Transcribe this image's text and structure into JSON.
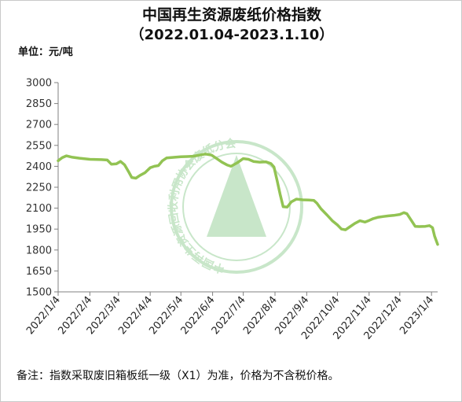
{
  "header": {
    "title": "中国再生资源废纸价格指数",
    "subtitle": "（2022.01.04-2023.1.10）",
    "unit": "单位：元/吨"
  },
  "footer": {
    "note": "备注：指数采取废旧箱板纸一级（X1）为准，价格为不含税价格。"
  },
  "watermark": {
    "text": "中国再生资源回收利用协会废纸分会",
    "color": "#4caf50"
  },
  "chart_data": {
    "type": "line",
    "title": "中国再生资源废纸价格指数",
    "subtitle": "（2022.01.04-2023.1.10）",
    "ylabel": "单位：元/吨",
    "ylim": [
      1500,
      3000
    ],
    "yticks": [
      1500,
      1650,
      1800,
      1950,
      2100,
      2250,
      2400,
      2550,
      2700,
      2850,
      3000
    ],
    "xlim": [
      "2022-01-04",
      "2023-01-10"
    ],
    "xticks": [
      {
        "date": "2022-01-04",
        "label": "2022/1/4"
      },
      {
        "date": "2022-02-04",
        "label": "2022/2/4"
      },
      {
        "date": "2022-03-04",
        "label": "2022/3/4"
      },
      {
        "date": "2022-04-04",
        "label": "2022/4/4"
      },
      {
        "date": "2022-05-04",
        "label": "2022/5/4"
      },
      {
        "date": "2022-06-04",
        "label": "2022/6/4"
      },
      {
        "date": "2022-07-04",
        "label": "2022/7/4"
      },
      {
        "date": "2022-08-04",
        "label": "2022/8/4"
      },
      {
        "date": "2022-09-04",
        "label": "2022/9/4"
      },
      {
        "date": "2022-10-04",
        "label": "2022/10/4"
      },
      {
        "date": "2022-11-04",
        "label": "2022/11/4"
      },
      {
        "date": "2022-12-04",
        "label": "2022/12/4"
      },
      {
        "date": "2023-01-04",
        "label": "2023/1/4"
      }
    ],
    "grid": false,
    "legend": "none",
    "line_color": "#92c353",
    "series": [
      {
        "points": [
          [
            "2022-01-04",
            2440
          ],
          [
            "2022-01-08",
            2462
          ],
          [
            "2022-01-12",
            2475
          ],
          [
            "2022-01-18",
            2465
          ],
          [
            "2022-01-25",
            2458
          ],
          [
            "2022-02-04",
            2450
          ],
          [
            "2022-02-15",
            2448
          ],
          [
            "2022-02-21",
            2445
          ],
          [
            "2022-02-25",
            2415
          ],
          [
            "2022-03-02",
            2418
          ],
          [
            "2022-03-06",
            2435
          ],
          [
            "2022-03-10",
            2410
          ],
          [
            "2022-03-14",
            2360
          ],
          [
            "2022-03-17",
            2320
          ],
          [
            "2022-03-21",
            2315
          ],
          [
            "2022-03-25",
            2335
          ],
          [
            "2022-03-30",
            2355
          ],
          [
            "2022-04-04",
            2390
          ],
          [
            "2022-04-08",
            2400
          ],
          [
            "2022-04-12",
            2405
          ],
          [
            "2022-04-16",
            2440
          ],
          [
            "2022-04-20",
            2460
          ],
          [
            "2022-04-28",
            2465
          ],
          [
            "2022-05-04",
            2468
          ],
          [
            "2022-05-10",
            2470
          ],
          [
            "2022-05-16",
            2472
          ],
          [
            "2022-05-22",
            2480
          ],
          [
            "2022-05-28",
            2488
          ],
          [
            "2022-06-03",
            2480
          ],
          [
            "2022-06-08",
            2455
          ],
          [
            "2022-06-13",
            2430
          ],
          [
            "2022-06-18",
            2410
          ],
          [
            "2022-06-22",
            2400
          ],
          [
            "2022-06-28",
            2425
          ],
          [
            "2022-07-04",
            2455
          ],
          [
            "2022-07-09",
            2450
          ],
          [
            "2022-07-14",
            2435
          ],
          [
            "2022-07-20",
            2430
          ],
          [
            "2022-07-26",
            2432
          ],
          [
            "2022-07-31",
            2420
          ],
          [
            "2022-08-03",
            2395
          ],
          [
            "2022-08-06",
            2300
          ],
          [
            "2022-08-09",
            2200
          ],
          [
            "2022-08-12",
            2110
          ],
          [
            "2022-08-16",
            2108
          ],
          [
            "2022-08-20",
            2145
          ],
          [
            "2022-08-25",
            2165
          ],
          [
            "2022-08-31",
            2160
          ],
          [
            "2022-09-06",
            2158
          ],
          [
            "2022-09-11",
            2155
          ],
          [
            "2022-09-14",
            2135
          ],
          [
            "2022-09-18",
            2095
          ],
          [
            "2022-09-24",
            2050
          ],
          [
            "2022-09-29",
            2010
          ],
          [
            "2022-10-04",
            1980
          ],
          [
            "2022-10-08",
            1950
          ],
          [
            "2022-10-12",
            1945
          ],
          [
            "2022-10-16",
            1965
          ],
          [
            "2022-10-21",
            1990
          ],
          [
            "2022-10-26",
            2010
          ],
          [
            "2022-10-31",
            2000
          ],
          [
            "2022-11-04",
            2012
          ],
          [
            "2022-11-08",
            2025
          ],
          [
            "2022-11-13",
            2035
          ],
          [
            "2022-11-18",
            2040
          ],
          [
            "2022-11-23",
            2045
          ],
          [
            "2022-11-28",
            2048
          ],
          [
            "2022-12-04",
            2055
          ],
          [
            "2022-12-08",
            2068
          ],
          [
            "2022-12-11",
            2060
          ],
          [
            "2022-12-15",
            2015
          ],
          [
            "2022-12-19",
            1970
          ],
          [
            "2022-12-23",
            1968
          ],
          [
            "2022-12-29",
            1970
          ],
          [
            "2023-01-02",
            1975
          ],
          [
            "2023-01-05",
            1960
          ],
          [
            "2023-01-07",
            1900
          ],
          [
            "2023-01-10",
            1840
          ]
        ]
      }
    ]
  }
}
